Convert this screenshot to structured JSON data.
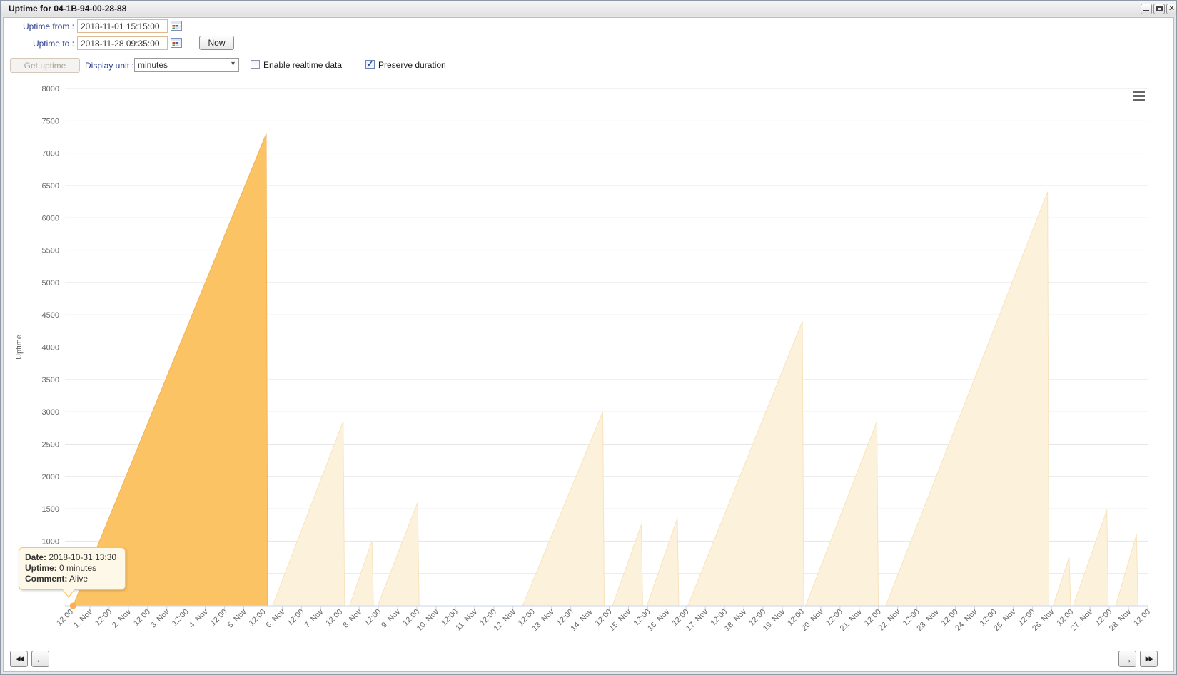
{
  "window": {
    "title": "Uptime for 04-1B-94-00-28-88"
  },
  "form": {
    "uptime_from_label": "Uptime from :",
    "uptime_from_value": "2018-11-01 15:15:00",
    "uptime_to_label": "Uptime to :",
    "uptime_to_value": "2018-11-28 09:35:00",
    "now_button": "Now",
    "get_uptime_button": "Get uptime",
    "display_unit_label": "Display unit :",
    "display_unit_value": "minutes",
    "enable_realtime_label": "Enable realtime data",
    "enable_realtime_checked": false,
    "preserve_duration_label": "Preserve duration",
    "preserve_duration_checked": true
  },
  "tooltip": {
    "date_label": "Date:",
    "date_value": "2018-10-31 13:30",
    "uptime_label": "Uptime:",
    "uptime_value": "0 minutes",
    "comment_label": "Comment:",
    "comment_value": "Alive"
  },
  "nav": {
    "rewind_icon": "◀◀",
    "back_icon": "←",
    "forward_icon": "→",
    "fast_forward_icon": "▶▶"
  },
  "chart_data": {
    "type": "area",
    "title": "",
    "ylabel": "Uptime",
    "xlabel": "",
    "ylim": [
      0,
      8000
    ],
    "y_gridline_step": 500,
    "y_ticks": [
      1000,
      1500,
      2000,
      2500,
      3000,
      3500,
      4000,
      4500,
      5000,
      5500,
      6000,
      6500,
      7000,
      7500,
      8000
    ],
    "x_base": "2018-10-31 12:00",
    "x_end": "2018-11-28 12:00",
    "x_tick_interval_hours": 12,
    "x_tick_labels": [
      "12:00",
      "1. Nov",
      "12:00",
      "2. Nov",
      "12:00",
      "3. Nov",
      "12:00",
      "4. Nov",
      "12:00",
      "5. Nov",
      "12:00",
      "6. Nov",
      "12:00",
      "7. Nov",
      "12:00",
      "8. Nov",
      "12:00",
      "9. Nov",
      "12:00",
      "10. Nov",
      "12:00",
      "11. Nov",
      "12:00",
      "12. Nov",
      "12:00",
      "13. Nov",
      "12:00",
      "14. Nov",
      "12:00",
      "15. Nov",
      "12:00",
      "16. Nov",
      "12:00",
      "17. Nov",
      "12:00",
      "18. Nov",
      "12:00",
      "19. Nov",
      "12:00",
      "20. Nov",
      "12:00",
      "21. Nov",
      "12:00",
      "22. Nov",
      "12:00",
      "23. Nov",
      "12:00",
      "24. Nov",
      "12:00",
      "25. Nov",
      "12:00",
      "26. Nov",
      "12:00",
      "27. Nov",
      "12:00",
      "28. Nov",
      "12:00"
    ],
    "grid": true,
    "legend": false,
    "highlighted_session_index": 0,
    "marker_point": {
      "time": "2018-10-31 13:30",
      "value": 0,
      "comment": "Alive"
    },
    "series": [
      {
        "name": "uptime-session",
        "start": "2018-10-31 13:30",
        "peak_time": "2018-11-05 14:00",
        "peak_minutes": 7300
      },
      {
        "name": "uptime-session",
        "start": "2018-11-05 18:00",
        "peak_time": "2018-11-07 14:00",
        "peak_minutes": 2850
      },
      {
        "name": "uptime-session",
        "start": "2018-11-07 18:00",
        "peak_time": "2018-11-08 08:00",
        "peak_minutes": 1000
      },
      {
        "name": "uptime-session",
        "start": "2018-11-08 11:30",
        "peak_time": "2018-11-09 12:30",
        "peak_minutes": 1600
      },
      {
        "name": "uptime-session",
        "start": "2018-11-12 06:00",
        "peak_time": "2018-11-14 08:00",
        "peak_minutes": 3000
      },
      {
        "name": "uptime-session",
        "start": "2018-11-14 14:00",
        "peak_time": "2018-11-15 08:00",
        "peak_minutes": 1250
      },
      {
        "name": "uptime-session",
        "start": "2018-11-15 11:30",
        "peak_time": "2018-11-16 06:30",
        "peak_minutes": 1350
      },
      {
        "name": "uptime-session",
        "start": "2018-11-16 13:00",
        "peak_time": "2018-11-19 12:30",
        "peak_minutes": 4400
      },
      {
        "name": "uptime-session",
        "start": "2018-11-19 14:30",
        "peak_time": "2018-11-21 11:00",
        "peak_minutes": 2850
      },
      {
        "name": "uptime-session",
        "start": "2018-11-21 16:30",
        "peak_time": "2018-11-25 21:30",
        "peak_minutes": 6400
      },
      {
        "name": "uptime-session",
        "start": "2018-11-26 01:00",
        "peak_time": "2018-11-26 11:00",
        "peak_minutes": 750
      },
      {
        "name": "uptime-session",
        "start": "2018-11-26 13:30",
        "peak_time": "2018-11-27 10:30",
        "peak_minutes": 1480
      },
      {
        "name": "uptime-session",
        "start": "2018-11-27 16:00",
        "peak_time": "2018-11-28 05:00",
        "peak_minutes": 1100
      }
    ],
    "colors": {
      "highlight_fill": "#fbc364",
      "highlight_stroke": "#f3b255",
      "dim_fill": "#fcf2dc",
      "dim_stroke": "#f7e3bd",
      "grid": "#e6e6e6",
      "axis": "#ccd6eb",
      "tick": "#ccd6eb",
      "label": "#666666",
      "marker": "#fbae56",
      "tooltip_border": "#fbc364",
      "tooltip_bg": "#fdf8e7"
    }
  }
}
